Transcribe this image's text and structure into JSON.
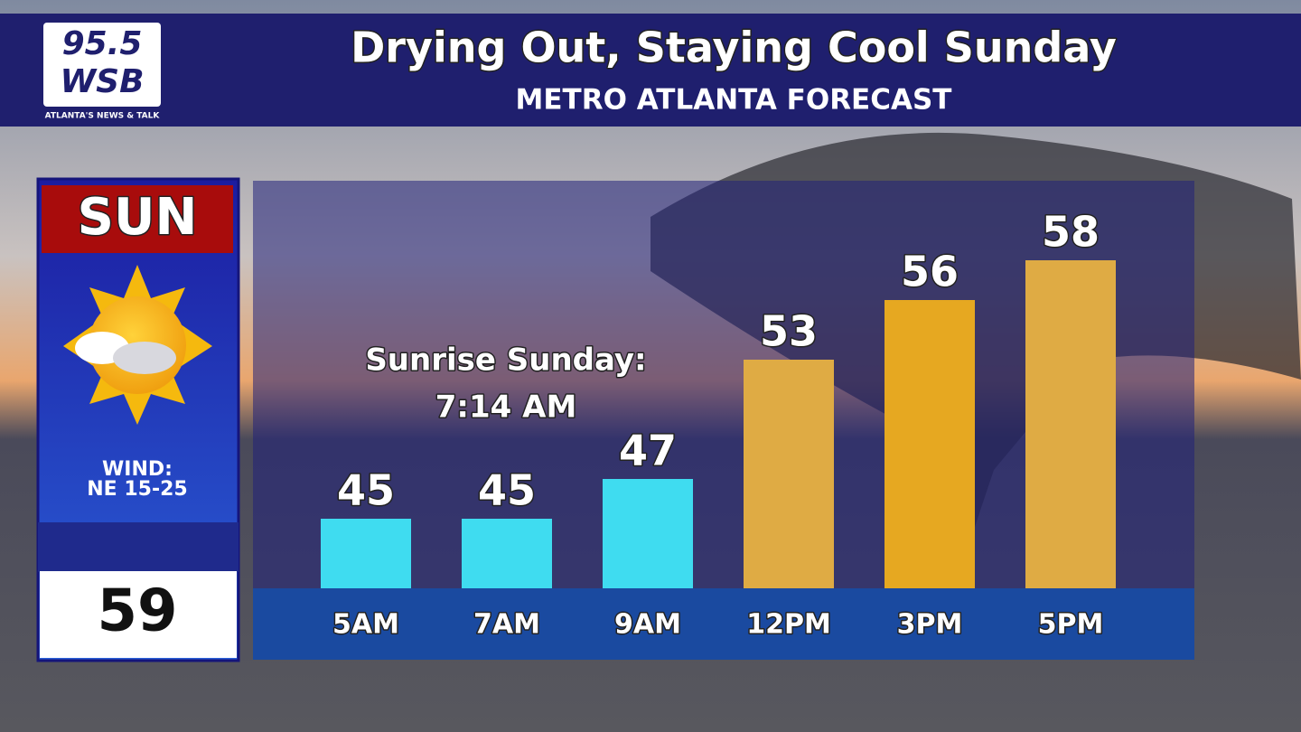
{
  "logo": {
    "line1": "95.5",
    "line2": "WSB",
    "tagline": "ATLANTA'S NEWS & TALK"
  },
  "header": {
    "title": "Drying Out, Staying Cool Sunday",
    "subtitle": "METRO  ATLANTA   FORECAST"
  },
  "side_panel": {
    "day": "SUN",
    "wind_label": "WIND:",
    "wind": "NE  15-25",
    "high": 59
  },
  "chart_data": {
    "type": "bar",
    "categories": [
      "5AM",
      "7AM",
      "9AM",
      "12PM",
      "3PM",
      "5PM"
    ],
    "values": [
      45,
      45,
      47,
      53,
      56,
      58
    ],
    "colors": [
      "#3fdcf0",
      "#3fdcf0",
      "#3fdcf0",
      "#dfab44",
      "#e6a821",
      "#dfab44"
    ],
    "ylim": [
      41.5,
      59.5
    ],
    "annotations": [
      "Sunrise Sunday:",
      "7:14 AM"
    ]
  }
}
